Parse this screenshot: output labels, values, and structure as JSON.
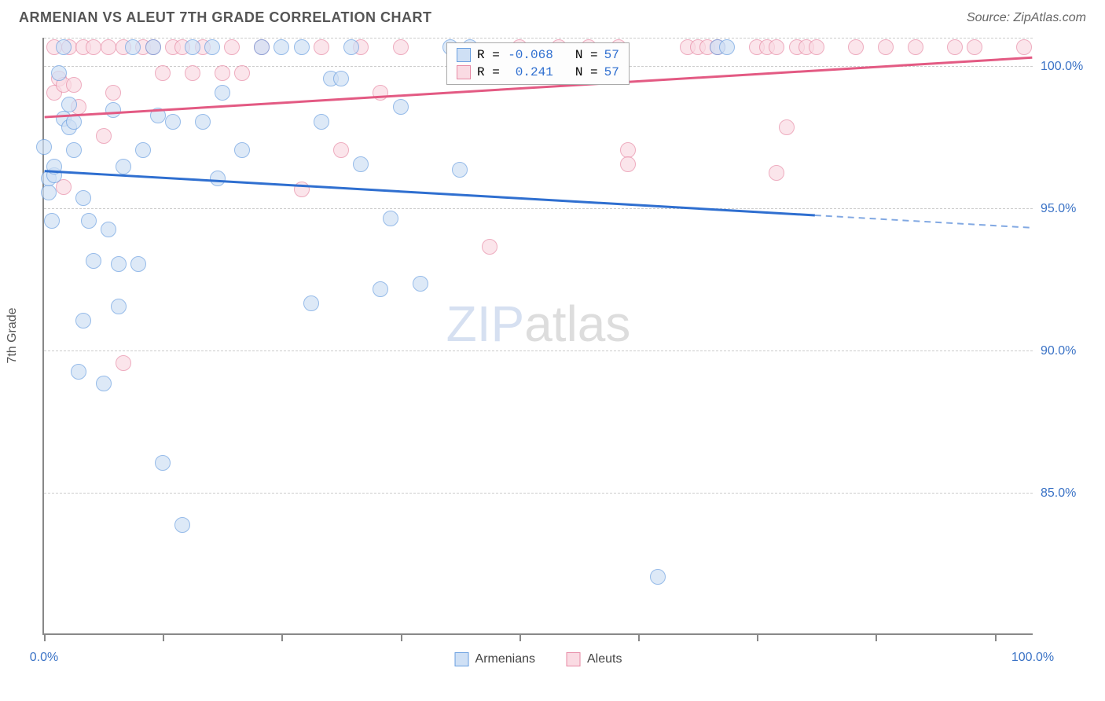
{
  "title": "ARMENIAN VS ALEUT 7TH GRADE CORRELATION CHART",
  "source_label": "Source: ZipAtlas.com",
  "yaxis_title": "7th Grade",
  "watermark": {
    "part1": "ZIP",
    "part2": "atlas"
  },
  "chart": {
    "type": "scatter",
    "xlim": [
      0,
      100
    ],
    "ylim": [
      80,
      101
    ],
    "x_ticks": [
      0,
      12,
      24,
      36,
      48,
      60,
      72,
      84,
      96
    ],
    "x_tick_labels": {
      "0": "0.0%",
      "100": "100.0%"
    },
    "y_grid": [
      85,
      90,
      95,
      100,
      101
    ],
    "y_tick_labels": {
      "85": "85.0%",
      "90": "90.0%",
      "95": "95.0%",
      "100": "100.0%"
    },
    "background_color": "#ffffff",
    "grid_color": "#cccccc",
    "marker_radius": 10,
    "marker_stroke_width": 1.5,
    "series": [
      {
        "name": "Armenians",
        "fill": "#cfe0f5",
        "stroke": "#6a9fe0",
        "fill_opacity": 0.7,
        "line_color": "#2f6fd0",
        "trend": {
          "y_at_x0": 96.3,
          "y_at_x100": 94.3,
          "solid_until_x": 78
        },
        "r_value": "-0.068",
        "n_value": "57",
        "points": [
          [
            0,
            97.1
          ],
          [
            0.5,
            95.5
          ],
          [
            0.8,
            94.5
          ],
          [
            0.5,
            96.0
          ],
          [
            1,
            96.1
          ],
          [
            1,
            96.4
          ],
          [
            1.5,
            99.7
          ],
          [
            2,
            98.1
          ],
          [
            2,
            100.6
          ],
          [
            2.5,
            98.6
          ],
          [
            2.5,
            97.8
          ],
          [
            3,
            97.0
          ],
          [
            3,
            98.0
          ],
          [
            3.5,
            89.2
          ],
          [
            4,
            95.3
          ],
          [
            4,
            91.0
          ],
          [
            4.5,
            94.5
          ],
          [
            5,
            93.1
          ],
          [
            6,
            88.8
          ],
          [
            6.5,
            94.2
          ],
          [
            7,
            98.4
          ],
          [
            7.5,
            93.0
          ],
          [
            7.5,
            91.5
          ],
          [
            8,
            96.4
          ],
          [
            9,
            100.6
          ],
          [
            9.5,
            93.0
          ],
          [
            10,
            97.0
          ],
          [
            11,
            100.6
          ],
          [
            11.5,
            98.2
          ],
          [
            12,
            86.0
          ],
          [
            13,
            98.0
          ],
          [
            14,
            83.8
          ],
          [
            15,
            100.6
          ],
          [
            16,
            98.0
          ],
          [
            17,
            100.6
          ],
          [
            17.5,
            96.0
          ],
          [
            18,
            99.0
          ],
          [
            20,
            97.0
          ],
          [
            22,
            100.6
          ],
          [
            24,
            100.6
          ],
          [
            26,
            100.6
          ],
          [
            27,
            91.6
          ],
          [
            28,
            98.0
          ],
          [
            29,
            99.5
          ],
          [
            30,
            99.5
          ],
          [
            31,
            100.6
          ],
          [
            32,
            96.5
          ],
          [
            34,
            92.1
          ],
          [
            35,
            94.6
          ],
          [
            36,
            98.5
          ],
          [
            38,
            92.3
          ],
          [
            41,
            100.6
          ],
          [
            42,
            96.3
          ],
          [
            43,
            100.6
          ],
          [
            62,
            82.0
          ],
          [
            68,
            100.6
          ],
          [
            69,
            100.6
          ]
        ]
      },
      {
        "name": "Aleuts",
        "fill": "#fadbe3",
        "stroke": "#e78aa5",
        "fill_opacity": 0.7,
        "line_color": "#e35a83",
        "trend": {
          "y_at_x0": 98.2,
          "y_at_x100": 100.3,
          "solid_until_x": 100
        },
        "r_value": "0.241",
        "n_value": "57",
        "points": [
          [
            1,
            99.0
          ],
          [
            1,
            100.6
          ],
          [
            1.5,
            99.5
          ],
          [
            2,
            95.7
          ],
          [
            2,
            99.3
          ],
          [
            2.5,
            100.6
          ],
          [
            3,
            99.3
          ],
          [
            3.5,
            98.5
          ],
          [
            4,
            100.6
          ],
          [
            5,
            100.6
          ],
          [
            6,
            97.5
          ],
          [
            6.5,
            100.6
          ],
          [
            7,
            99.0
          ],
          [
            8,
            89.5
          ],
          [
            8,
            100.6
          ],
          [
            10,
            100.6
          ],
          [
            11,
            100.6
          ],
          [
            12,
            99.7
          ],
          [
            13,
            100.6
          ],
          [
            14,
            100.6
          ],
          [
            15,
            99.7
          ],
          [
            16,
            100.6
          ],
          [
            18,
            99.7
          ],
          [
            19,
            100.6
          ],
          [
            20,
            99.7
          ],
          [
            22,
            100.6
          ],
          [
            26,
            95.6
          ],
          [
            28,
            100.6
          ],
          [
            30,
            97.0
          ],
          [
            32,
            100.6
          ],
          [
            34,
            99.0
          ],
          [
            36,
            100.6
          ],
          [
            45,
            93.6
          ],
          [
            48,
            100.6
          ],
          [
            52,
            100.6
          ],
          [
            55,
            100.6
          ],
          [
            58,
            100.6
          ],
          [
            59,
            97.0
          ],
          [
            59,
            96.5
          ],
          [
            65,
            100.6
          ],
          [
            66,
            100.6
          ],
          [
            67,
            100.6
          ],
          [
            68,
            100.6
          ],
          [
            72,
            100.6
          ],
          [
            73,
            100.6
          ],
          [
            74,
            100.6
          ],
          [
            74,
            96.2
          ],
          [
            75,
            97.8
          ],
          [
            76,
            100.6
          ],
          [
            77,
            100.6
          ],
          [
            78,
            100.6
          ],
          [
            82,
            100.6
          ],
          [
            85,
            100.6
          ],
          [
            88,
            100.6
          ],
          [
            92,
            100.6
          ],
          [
            94,
            100.6
          ],
          [
            99,
            100.6
          ]
        ]
      }
    ]
  },
  "stats_labels": {
    "r_prefix": "R = ",
    "n_prefix": "N = "
  },
  "legend": {
    "items": [
      "Armenians",
      "Aleuts"
    ]
  }
}
